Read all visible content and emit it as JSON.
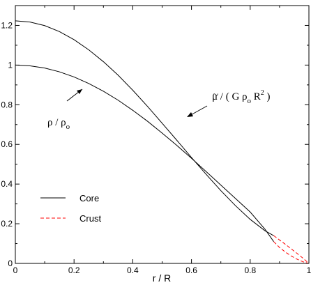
{
  "chart_data": {
    "type": "line",
    "xlabel": "r / R",
    "ylabel": "",
    "xlim": [
      0,
      1
    ],
    "ylim": [
      0,
      1.3
    ],
    "grid": false,
    "xticks": [
      "0",
      "0.2",
      "0.4",
      "0.6",
      "0.8",
      "1"
    ],
    "yticks": [
      "0",
      "0.2",
      "0.4",
      "0.6",
      "0.8",
      "1",
      "1.2"
    ],
    "legend": {
      "placement": "bottom-left",
      "entries": [
        {
          "label": "Core",
          "style": "solid",
          "color": "#000000"
        },
        {
          "label": "Crust",
          "style": "dashed",
          "color": "#ff0000"
        }
      ]
    },
    "series": [
      {
        "role": "rho-core",
        "color": "#000000",
        "style": "solid",
        "x": [
          0,
          0.05,
          0.1,
          0.15,
          0.2,
          0.25,
          0.3,
          0.35,
          0.4,
          0.45,
          0.5,
          0.55,
          0.6,
          0.65,
          0.7,
          0.75,
          0.8,
          0.85,
          0.88
        ],
        "y": [
          1.0,
          0.996,
          0.985,
          0.966,
          0.94,
          0.907,
          0.868,
          0.823,
          0.772,
          0.717,
          0.657,
          0.595,
          0.53,
          0.463,
          0.395,
          0.327,
          0.259,
          0.173,
          0.11
        ]
      },
      {
        "role": "rho-crust",
        "color": "#ff0000",
        "style": "dashed",
        "x": [
          0.88,
          0.9,
          0.92,
          0.94,
          0.96,
          0.98,
          1.0
        ],
        "y": [
          0.11,
          0.08,
          0.057,
          0.037,
          0.021,
          0.008,
          0.0
        ]
      },
      {
        "role": "mu-core",
        "color": "#000000",
        "style": "solid",
        "x": [
          0,
          0.05,
          0.1,
          0.15,
          0.2,
          0.25,
          0.3,
          0.35,
          0.4,
          0.45,
          0.5,
          0.55,
          0.6,
          0.65,
          0.7,
          0.75,
          0.8,
          0.85,
          0.88
        ],
        "y": [
          1.223,
          1.217,
          1.199,
          1.169,
          1.128,
          1.077,
          1.017,
          0.949,
          0.873,
          0.792,
          0.707,
          0.621,
          0.534,
          0.449,
          0.367,
          0.291,
          0.222,
          0.165,
          0.14
        ]
      },
      {
        "role": "mu-crust",
        "color": "#ff0000",
        "style": "dashed",
        "x": [
          0.88,
          0.9,
          0.92,
          0.94,
          0.96,
          0.98,
          1.0
        ],
        "y": [
          0.14,
          0.118,
          0.096,
          0.073,
          0.05,
          0.026,
          0.0
        ]
      }
    ],
    "annotations": {
      "rho_main": "ρ / ρ",
      "rho_sub": "o",
      "mu_main": "μ / ( G  ρ",
      "mu_sub": "o",
      "mu_tail": " R",
      "mu_sup": "2",
      "mu_close": " )",
      "mu_tilde": "~"
    }
  }
}
